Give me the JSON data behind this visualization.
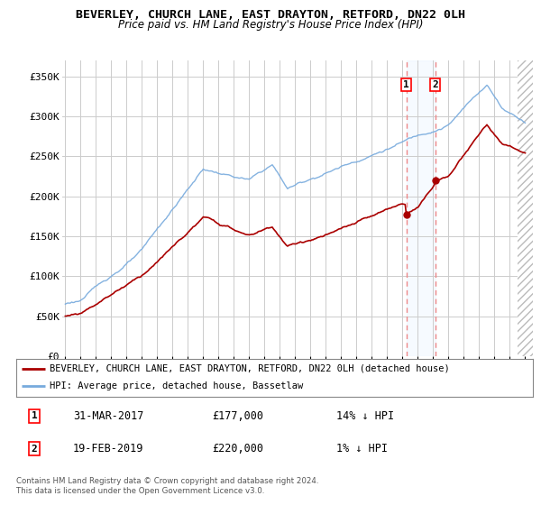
{
  "title": "BEVERLEY, CHURCH LANE, EAST DRAYTON, RETFORD, DN22 0LH",
  "subtitle": "Price paid vs. HM Land Registry's House Price Index (HPI)",
  "ylabel_ticks": [
    "£0",
    "£50K",
    "£100K",
    "£150K",
    "£200K",
    "£250K",
    "£300K",
    "£350K"
  ],
  "ytick_values": [
    0,
    50000,
    100000,
    150000,
    200000,
    250000,
    300000,
    350000
  ],
  "ylim": [
    0,
    370000
  ],
  "xlim_start": 1994.8,
  "xlim_end": 2025.5,
  "legend_line1": "BEVERLEY, CHURCH LANE, EAST DRAYTON, RETFORD, DN22 0LH (detached house)",
  "legend_line2": "HPI: Average price, detached house, Bassetlaw",
  "sale1_label": "1",
  "sale1_date": "31-MAR-2017",
  "sale1_price": "£177,000",
  "sale1_hpi": "14% ↓ HPI",
  "sale1_x": 2017.25,
  "sale1_y": 177000,
  "sale2_label": "2",
  "sale2_date": "19-FEB-2019",
  "sale2_price": "£220,000",
  "sale2_hpi": "1% ↓ HPI",
  "sale2_x": 2019.12,
  "sale2_y": 220000,
  "footnote": "Contains HM Land Registry data © Crown copyright and database right 2024.\nThis data is licensed under the Open Government Licence v3.0.",
  "red_line_color": "#aa0000",
  "blue_line_color": "#77aadd",
  "marker_color": "#aa0000",
  "vline_color": "#ee8888",
  "shade_color": "#ddeeff",
  "bg_color": "#ffffff",
  "grid_color": "#cccccc",
  "title_fontsize": 9.5,
  "subtitle_fontsize": 8.5,
  "tick_fontsize": 8,
  "legend_fontsize": 7.5,
  "annot_fontsize": 8
}
